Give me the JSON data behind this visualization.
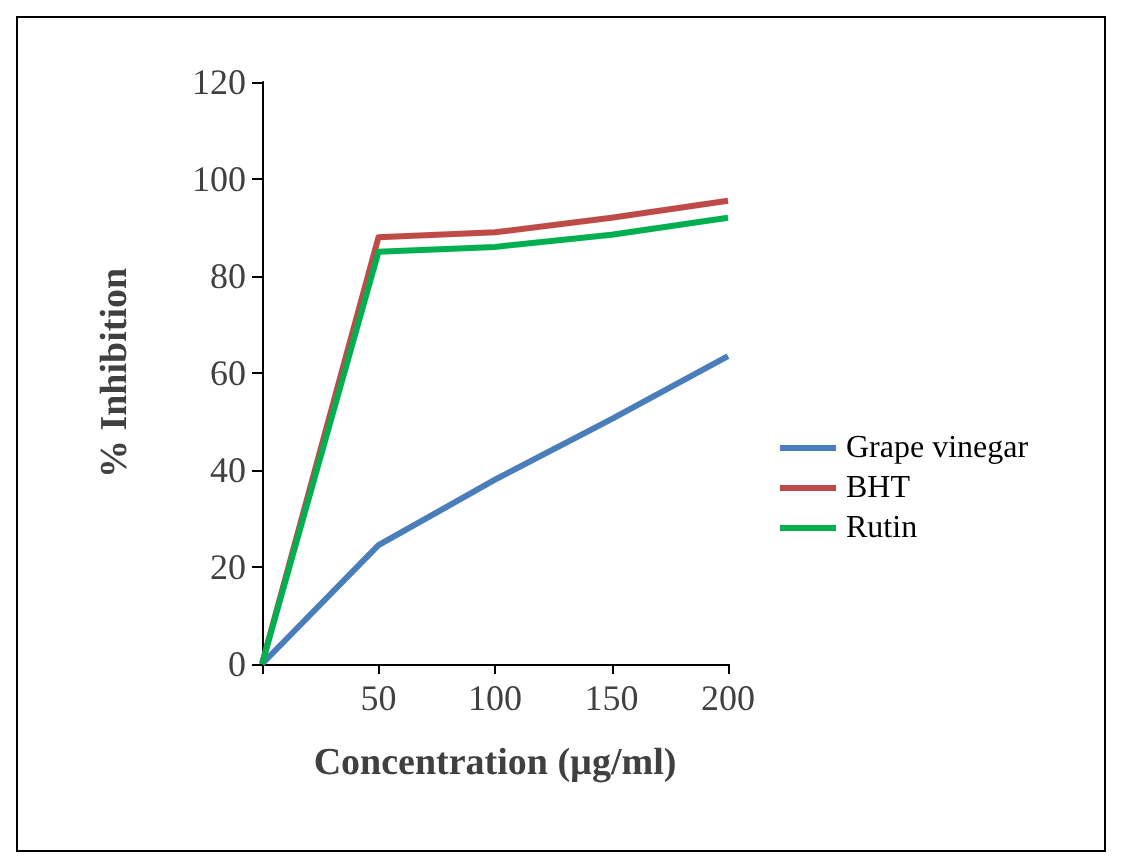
{
  "chart_data": {
    "type": "line",
    "xlabel": "Concentration (µg/ml)",
    "ylabel": "% Inhibition",
    "x": [
      0,
      50,
      100,
      150,
      200
    ],
    "series": [
      {
        "name": "Grape vinegar",
        "color": "#4a7ebb",
        "values": [
          0,
          24.5,
          38,
          50.5,
          63.5
        ]
      },
      {
        "name": "BHT",
        "color": "#be4b48",
        "values": [
          0,
          88,
          89,
          92,
          95.5
        ]
      },
      {
        "name": "Rutin",
        "color": "#00b050",
        "values": [
          0,
          85,
          86,
          88.5,
          92
        ]
      }
    ],
    "xlim": [
      0,
      200
    ],
    "xticks": [
      {
        "value": 0,
        "label": null
      },
      50,
      100,
      150,
      200
    ],
    "ylim": [
      0,
      120
    ],
    "yticks": [
      0,
      20,
      40,
      60,
      80,
      100,
      120
    ],
    "grid": false,
    "legend": "right",
    "marker": "none",
    "line_style": "solid"
  }
}
